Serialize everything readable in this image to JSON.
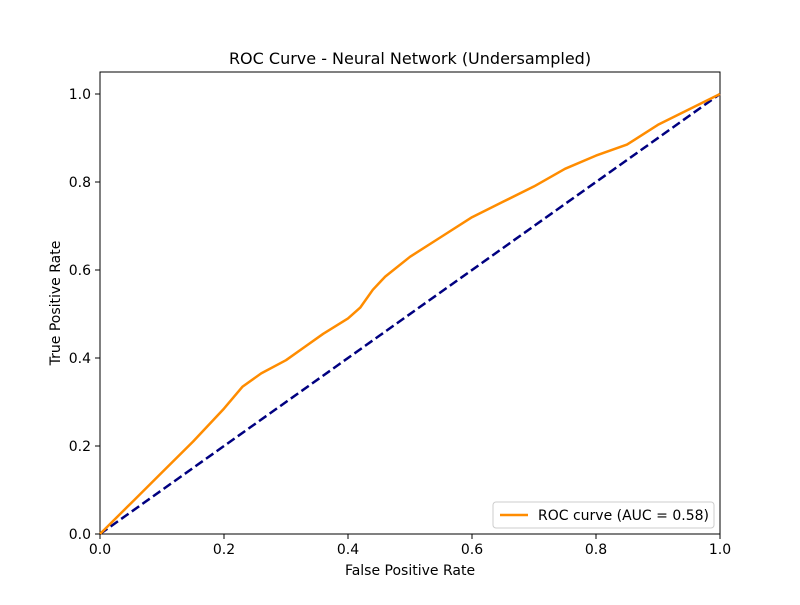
{
  "chart_data": {
    "type": "line",
    "title": "ROC Curve - Neural Network (Undersampled)",
    "xlabel": "False Positive Rate",
    "ylabel": "True Positive Rate",
    "xlim": [
      0.0,
      1.0
    ],
    "ylim": [
      0.0,
      1.05
    ],
    "grid": false,
    "legend_position": "lower-right",
    "x_ticks": [
      "0.0",
      "0.2",
      "0.4",
      "0.6",
      "0.8",
      "1.0"
    ],
    "y_ticks": [
      "0.0",
      "0.2",
      "0.4",
      "0.6",
      "0.8",
      "1.0"
    ],
    "series": [
      {
        "name": "ROC curve (AUC = 0.58)",
        "color": "#ff8c00",
        "style": "solid",
        "x": [
          0.0,
          0.05,
          0.1,
          0.15,
          0.2,
          0.23,
          0.26,
          0.3,
          0.33,
          0.36,
          0.4,
          0.42,
          0.44,
          0.46,
          0.5,
          0.55,
          0.6,
          0.65,
          0.7,
          0.75,
          0.8,
          0.85,
          0.9,
          0.95,
          1.0
        ],
        "y": [
          0.0,
          0.07,
          0.14,
          0.21,
          0.285,
          0.335,
          0.365,
          0.395,
          0.425,
          0.455,
          0.49,
          0.515,
          0.555,
          0.585,
          0.63,
          0.675,
          0.72,
          0.755,
          0.79,
          0.83,
          0.86,
          0.885,
          0.93,
          0.965,
          1.0
        ]
      },
      {
        "name": "",
        "color": "#000080",
        "style": "dashed",
        "x": [
          0.0,
          1.0
        ],
        "y": [
          0.0,
          1.0
        ]
      }
    ]
  }
}
